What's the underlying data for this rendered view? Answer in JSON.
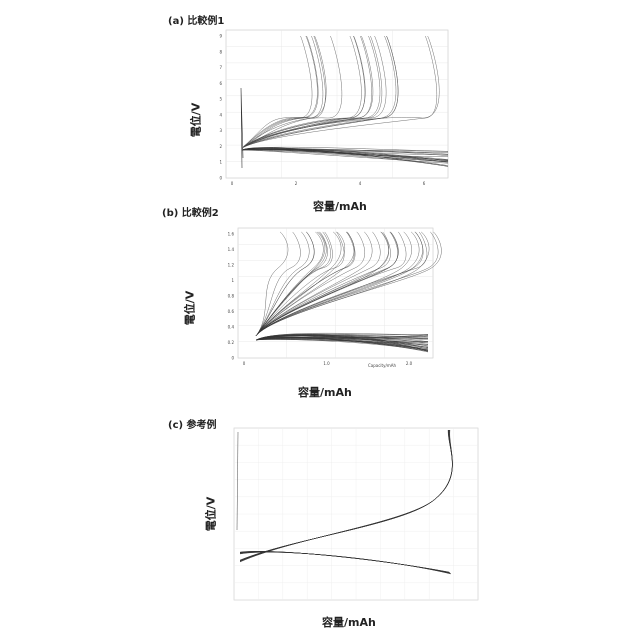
{
  "chart_data": [
    {
      "type": "line",
      "panel_label": "(a) 比較例1",
      "ylabel": "電位/V",
      "xlabel": "容量/mAh",
      "grid": true,
      "series_count": 40,
      "x_ticks": [
        "0",
        "2",
        "4",
        "6"
      ],
      "y_ticks": [
        "0",
        "1",
        "2",
        "3",
        "4",
        "5",
        "6",
        "7",
        "8",
        "9"
      ]
    },
    {
      "type": "line",
      "panel_label": "(b) 比較例2",
      "ylabel": "電位/V",
      "xlabel": "容量/mAh",
      "x_axis_note": "Capacity/mAh",
      "grid": true,
      "series_count": 70,
      "x_ticks": [
        "0",
        "1.0",
        "2.0"
      ],
      "y_ticks": [
        "0",
        "0.2",
        "0.4",
        "0.6",
        "0.8",
        "1",
        "1.2",
        "1.4",
        "1.6"
      ]
    },
    {
      "type": "line",
      "panel_label": "(c) 参考例",
      "ylabel": "電位/V",
      "xlabel": "容量/mAh",
      "grid": true,
      "series_count": 12
    }
  ]
}
